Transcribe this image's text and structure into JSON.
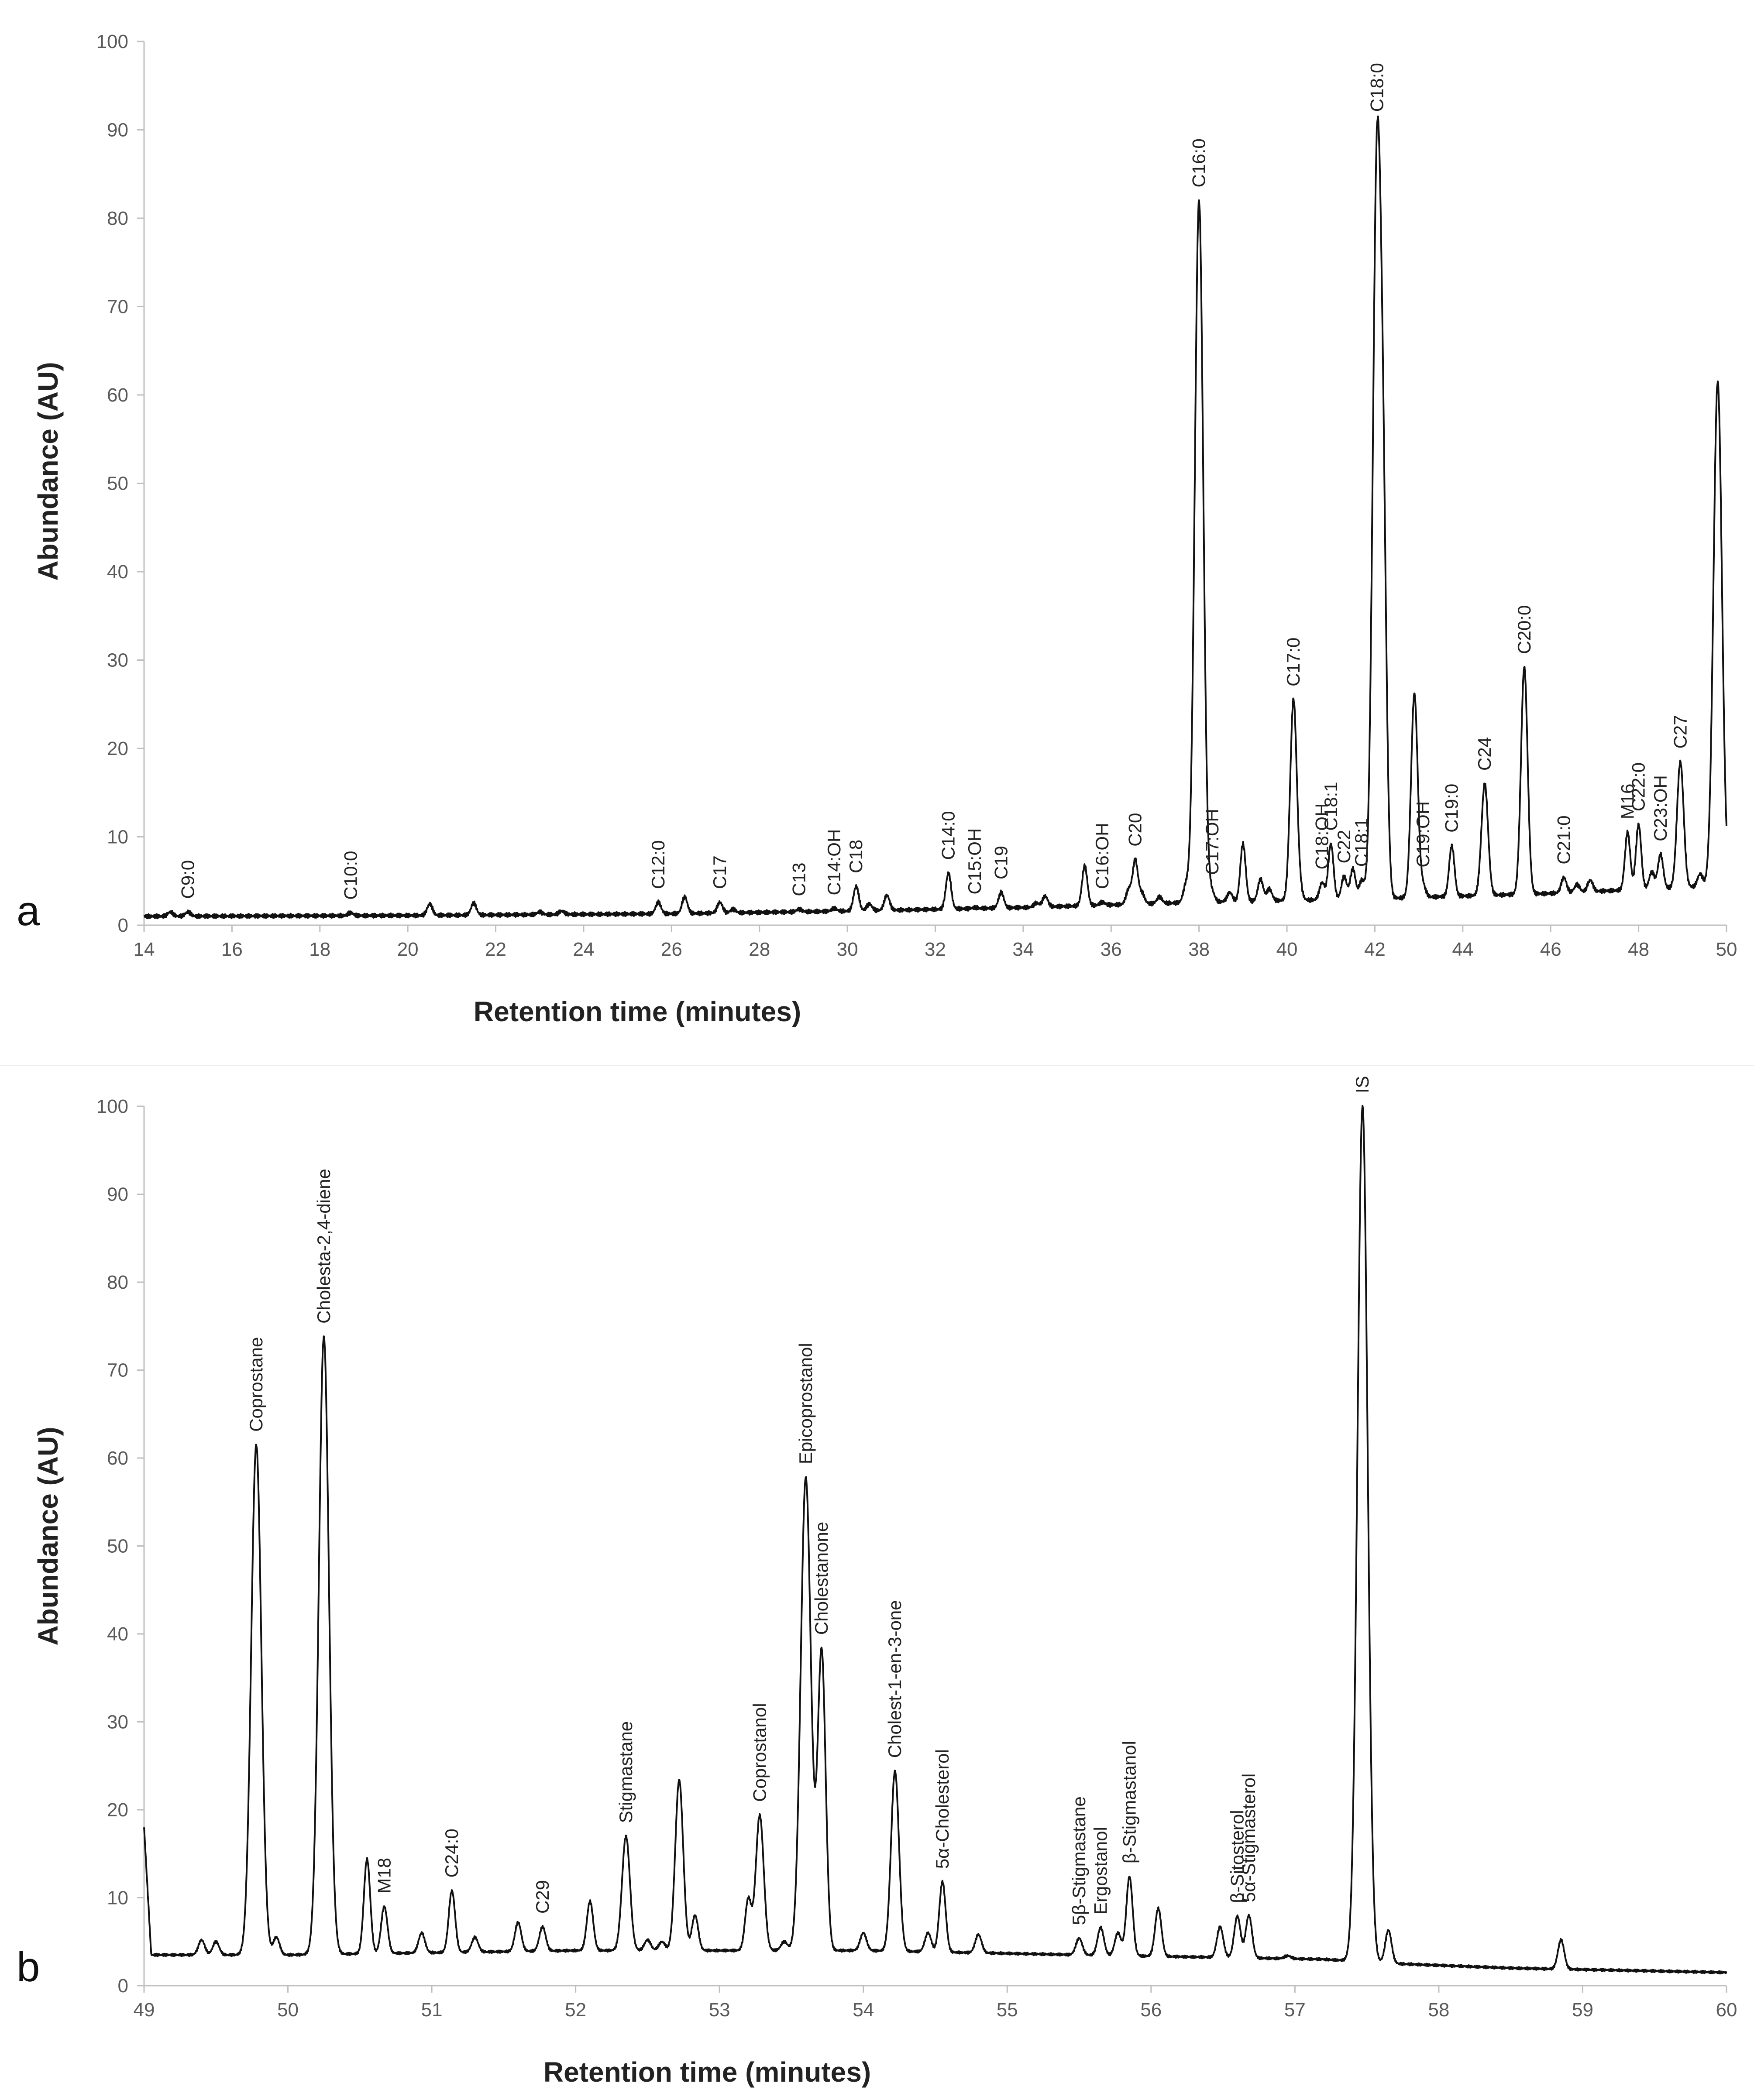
{
  "chart_data": [
    {
      "type": "line",
      "panel": "a",
      "title": "",
      "xlabel": "Retention time (minutes)",
      "ylabel": "Abundance (AU)",
      "xlim": [
        14,
        50
      ],
      "ylim": [
        0,
        100
      ],
      "xticks": [
        14,
        16,
        18,
        20,
        22,
        24,
        26,
        28,
        30,
        32,
        34,
        36,
        38,
        40,
        42,
        44,
        46,
        48,
        50
      ],
      "yticks": [
        0,
        10,
        20,
        30,
        40,
        50,
        60,
        70,
        80,
        90,
        100
      ],
      "baseline": [
        [
          14,
          1.0
        ],
        [
          20,
          1.1
        ],
        [
          26,
          1.3
        ],
        [
          30,
          1.6
        ],
        [
          34,
          2.0
        ],
        [
          38,
          2.6
        ],
        [
          42,
          3.0
        ],
        [
          46,
          3.6
        ],
        [
          50,
          4.5
        ]
      ],
      "peaks": [
        {
          "x": 14.6,
          "y": 1.5,
          "label": ""
        },
        {
          "x": 15.0,
          "y": 1.5,
          "label": "C9:0"
        },
        {
          "x": 18.7,
          "y": 1.4,
          "label": "C10:0"
        },
        {
          "x": 20.5,
          "y": 2.4,
          "label": ""
        },
        {
          "x": 21.5,
          "y": 2.5,
          "label": ""
        },
        {
          "x": 23.0,
          "y": 1.5,
          "label": ""
        },
        {
          "x": 23.5,
          "y": 1.6,
          "label": ""
        },
        {
          "x": 25.7,
          "y": 2.6,
          "label": "C12:0"
        },
        {
          "x": 26.3,
          "y": 3.2,
          "label": ""
        },
        {
          "x": 27.1,
          "y": 2.6,
          "label": "C17"
        },
        {
          "x": 27.4,
          "y": 1.8,
          "label": ""
        },
        {
          "x": 28.9,
          "y": 1.8,
          "label": "C13"
        },
        {
          "x": 29.7,
          "y": 1.9,
          "label": "C14:OH"
        },
        {
          "x": 30.2,
          "y": 4.4,
          "label": "C18"
        },
        {
          "x": 30.5,
          "y": 2.4,
          "label": ""
        },
        {
          "x": 30.9,
          "y": 3.4,
          "label": ""
        },
        {
          "x": 32.3,
          "y": 5.9,
          "label": "C14:0"
        },
        {
          "x": 32.9,
          "y": 2.0,
          "label": "C15:OH"
        },
        {
          "x": 33.5,
          "y": 3.7,
          "label": "C19"
        },
        {
          "x": 34.3,
          "y": 2.5,
          "label": ""
        },
        {
          "x": 34.5,
          "y": 3.3,
          "label": ""
        },
        {
          "x": 35.4,
          "y": 6.7,
          "label": ""
        },
        {
          "x": 35.8,
          "y": 2.6,
          "label": "C16:OH"
        },
        {
          "x": 36.4,
          "y": 4.0,
          "label": ""
        },
        {
          "x": 36.55,
          "y": 7.3,
          "label": "C20"
        },
        {
          "x": 36.7,
          "y": 3.6,
          "label": ""
        },
        {
          "x": 37.1,
          "y": 3.2,
          "label": ""
        },
        {
          "x": 37.7,
          "y": 4.4,
          "label": ""
        },
        {
          "x": 38.0,
          "y": 82.0,
          "label": "C16:0"
        },
        {
          "x": 38.3,
          "y": 3.6,
          "label": "C17:OH"
        },
        {
          "x": 38.7,
          "y": 3.7,
          "label": ""
        },
        {
          "x": 39.0,
          "y": 9.2,
          "label": ""
        },
        {
          "x": 39.4,
          "y": 5.2,
          "label": ""
        },
        {
          "x": 39.6,
          "y": 4.1,
          "label": ""
        },
        {
          "x": 40.15,
          "y": 25.5,
          "label": "C17:0"
        },
        {
          "x": 40.3,
          "y": 3.6,
          "label": ""
        },
        {
          "x": 40.8,
          "y": 4.8,
          "label": "C18:OH"
        },
        {
          "x": 41.0,
          "y": 9.2,
          "label": "C18:1"
        },
        {
          "x": 41.3,
          "y": 5.5,
          "label": "C22"
        },
        {
          "x": 41.5,
          "y": 6.4,
          "label": ""
        },
        {
          "x": 41.7,
          "y": 5.0,
          "label": "C18:1"
        },
        {
          "x": 42.05,
          "y": 86.5,
          "label": "C18:0"
        },
        {
          "x": 42.2,
          "y": 33.0,
          "label": ""
        },
        {
          "x": 42.9,
          "y": 26.2,
          "label": ""
        },
        {
          "x": 43.1,
          "y": 4.4,
          "label": "C19:OH"
        },
        {
          "x": 43.75,
          "y": 9.0,
          "label": "C19:0"
        },
        {
          "x": 44.5,
          "y": 16.0,
          "label": "C24"
        },
        {
          "x": 45.4,
          "y": 29.2,
          "label": "C20:0"
        },
        {
          "x": 46.3,
          "y": 5.4,
          "label": "C21:0"
        },
        {
          "x": 46.6,
          "y": 4.6,
          "label": ""
        },
        {
          "x": 46.9,
          "y": 5.1,
          "label": ""
        },
        {
          "x": 47.75,
          "y": 10.5,
          "label": "M16"
        },
        {
          "x": 48.0,
          "y": 11.4,
          "label": "C22:0"
        },
        {
          "x": 48.3,
          "y": 6.0,
          "label": ""
        },
        {
          "x": 48.5,
          "y": 8.0,
          "label": "C23:OH"
        },
        {
          "x": 48.95,
          "y": 18.5,
          "label": "C27"
        },
        {
          "x": 49.4,
          "y": 5.8,
          "label": ""
        },
        {
          "x": 49.8,
          "y": 61.5,
          "label": ""
        }
      ]
    },
    {
      "type": "line",
      "panel": "b",
      "title": "",
      "xlabel": "Retention time (minutes)",
      "ylabel": "Abundance (AU)",
      "xlim": [
        49,
        60
      ],
      "ylim": [
        0,
        100
      ],
      "xticks": [
        49,
        50,
        51,
        52,
        53,
        54,
        55,
        56,
        57,
        58,
        59,
        60
      ],
      "yticks": [
        0,
        10,
        20,
        30,
        40,
        50,
        60,
        70,
        80,
        90,
        100
      ],
      "baseline": [
        [
          49.0,
          18.0
        ],
        [
          49.05,
          3.5
        ],
        [
          50.0,
          3.5
        ],
        [
          52.0,
          4.0
        ],
        [
          54.0,
          4.0
        ],
        [
          55.5,
          3.5
        ],
        [
          57.2,
          3.0
        ],
        [
          57.7,
          2.5
        ],
        [
          58.5,
          2.0
        ],
        [
          60.0,
          1.5
        ]
      ],
      "peaks": [
        {
          "x": 49.4,
          "y": 5.2,
          "label": ""
        },
        {
          "x": 49.5,
          "y": 5.0,
          "label": ""
        },
        {
          "x": 49.78,
          "y": 61.5,
          "label": "Coprostane"
        },
        {
          "x": 49.92,
          "y": 5.5,
          "label": ""
        },
        {
          "x": 50.25,
          "y": 73.8,
          "label": "Cholesta-2,4-diene"
        },
        {
          "x": 50.55,
          "y": 14.4,
          "label": ""
        },
        {
          "x": 50.67,
          "y": 9.0,
          "label": "M18"
        },
        {
          "x": 50.93,
          "y": 6.0,
          "label": ""
        },
        {
          "x": 51.14,
          "y": 10.8,
          "label": "C24:0"
        },
        {
          "x": 51.3,
          "y": 5.5,
          "label": ""
        },
        {
          "x": 51.6,
          "y": 7.2,
          "label": ""
        },
        {
          "x": 51.77,
          "y": 6.7,
          "label": "C29"
        },
        {
          "x": 52.1,
          "y": 9.6,
          "label": ""
        },
        {
          "x": 52.35,
          "y": 17.0,
          "label": "Stigmastane"
        },
        {
          "x": 52.5,
          "y": 5.2,
          "label": ""
        },
        {
          "x": 52.6,
          "y": 5.0,
          "label": ""
        },
        {
          "x": 52.72,
          "y": 23.4,
          "label": ""
        },
        {
          "x": 52.83,
          "y": 8.0,
          "label": ""
        },
        {
          "x": 53.2,
          "y": 9.8,
          "label": ""
        },
        {
          "x": 53.28,
          "y": 19.4,
          "label": "Coprostanol"
        },
        {
          "x": 53.45,
          "y": 5.0,
          "label": ""
        },
        {
          "x": 53.6,
          "y": 57.8,
          "label": "Epicoprostanol"
        },
        {
          "x": 53.71,
          "y": 38.0,
          "label": "Cholestanone"
        },
        {
          "x": 54.0,
          "y": 6.0,
          "label": ""
        },
        {
          "x": 54.22,
          "y": 24.4,
          "label": "Cholest-1-en-3-one"
        },
        {
          "x": 54.45,
          "y": 6.0,
          "label": ""
        },
        {
          "x": 54.55,
          "y": 11.8,
          "label": "5α-Cholesterol"
        },
        {
          "x": 54.8,
          "y": 5.8,
          "label": ""
        },
        {
          "x": 55.5,
          "y": 5.4,
          "label": "5β-Stigmastane"
        },
        {
          "x": 55.65,
          "y": 6.6,
          "label": "Ergostanol"
        },
        {
          "x": 55.77,
          "y": 6.0,
          "label": ""
        },
        {
          "x": 55.85,
          "y": 12.4,
          "label": "β-Stigmastanol"
        },
        {
          "x": 56.05,
          "y": 8.8,
          "label": ""
        },
        {
          "x": 56.48,
          "y": 6.7,
          "label": ""
        },
        {
          "x": 56.6,
          "y": 7.9,
          "label": "β-Sitosterol"
        },
        {
          "x": 56.68,
          "y": 8.0,
          "label": "5α-Stigmasterol"
        },
        {
          "x": 56.95,
          "y": 3.4,
          "label": ""
        },
        {
          "x": 57.47,
          "y": 100.0,
          "label": "IS"
        },
        {
          "x": 57.65,
          "y": 6.3,
          "label": ""
        },
        {
          "x": 58.85,
          "y": 5.2,
          "label": ""
        }
      ]
    }
  ],
  "panels": {
    "a": {
      "letter": "a",
      "xlabel": "Retention time (minutes)",
      "ylabel": "Abundance (AU)"
    },
    "b": {
      "letter": "b",
      "xlabel": "Retention time (minutes)",
      "ylabel": "Abundance (AU)"
    }
  }
}
